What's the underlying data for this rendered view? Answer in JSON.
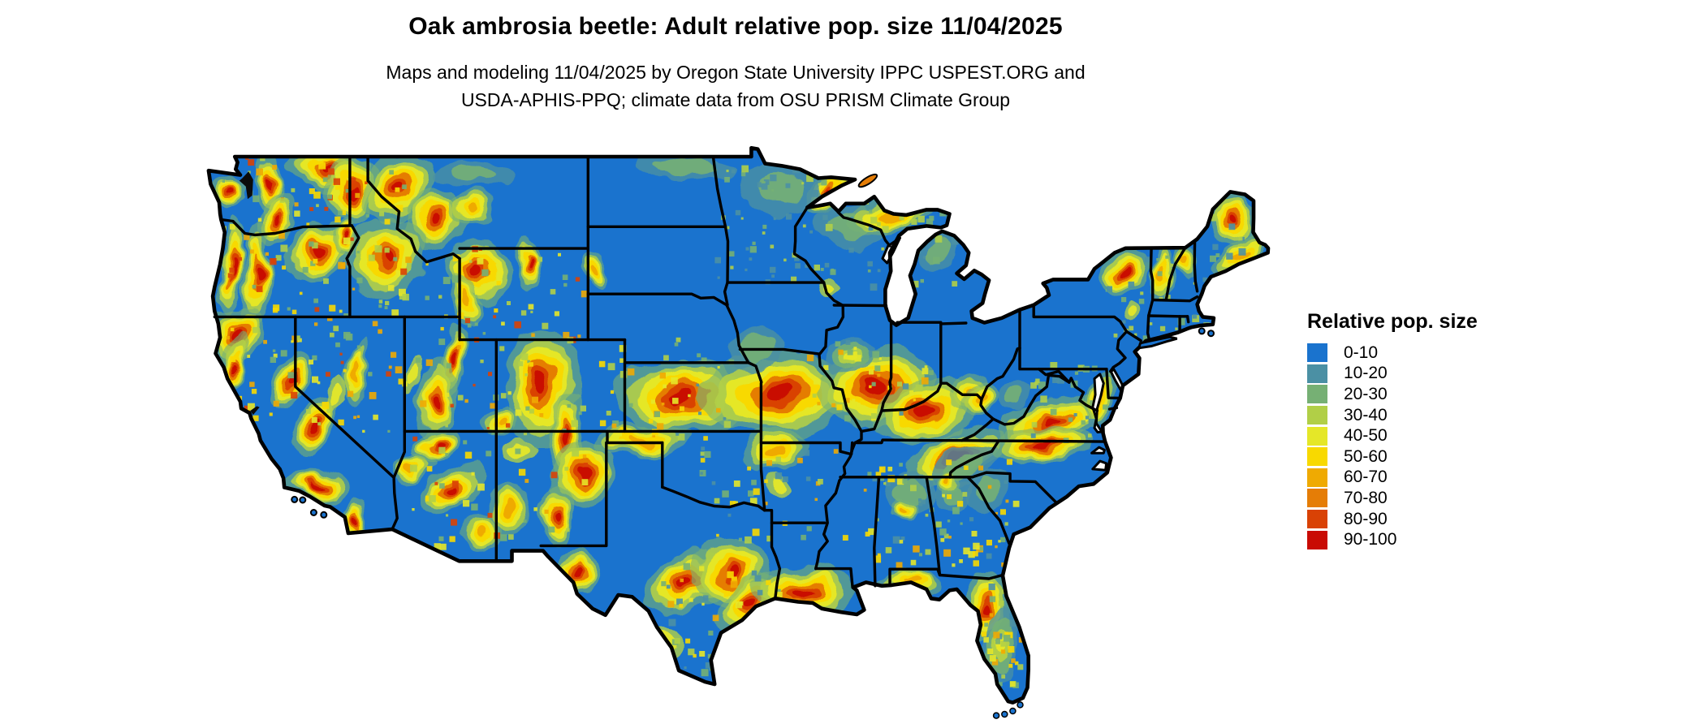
{
  "figure": {
    "title": "Oak ambrosia beetle: Adult relative pop. size 11/04/2025",
    "subtitle_line1": "Maps and modeling 11/04/2025 by Oregon State University IPPC USPEST.ORG and",
    "subtitle_line2": "USDA-APHIS-PPQ; climate data from OSU PRISM Climate Group"
  },
  "legend": {
    "title": "Relative pop. size",
    "classes": [
      {
        "label": "0-10",
        "color": "#1a73ce"
      },
      {
        "label": "10-20",
        "color": "#4b90a4"
      },
      {
        "label": "20-30",
        "color": "#76b074"
      },
      {
        "label": "30-40",
        "color": "#b1cf47"
      },
      {
        "label": "40-50",
        "color": "#e5e728"
      },
      {
        "label": "50-60",
        "color": "#f8d900"
      },
      {
        "label": "60-70",
        "color": "#efaa02"
      },
      {
        "label": "70-80",
        "color": "#e57d06"
      },
      {
        "label": "80-90",
        "color": "#d94205"
      },
      {
        "label": "90-100",
        "color": "#c90b04"
      }
    ]
  },
  "map": {
    "base_color": "#1a73ce",
    "boundary_color": "#000000",
    "water_color": "#ffffff"
  }
}
